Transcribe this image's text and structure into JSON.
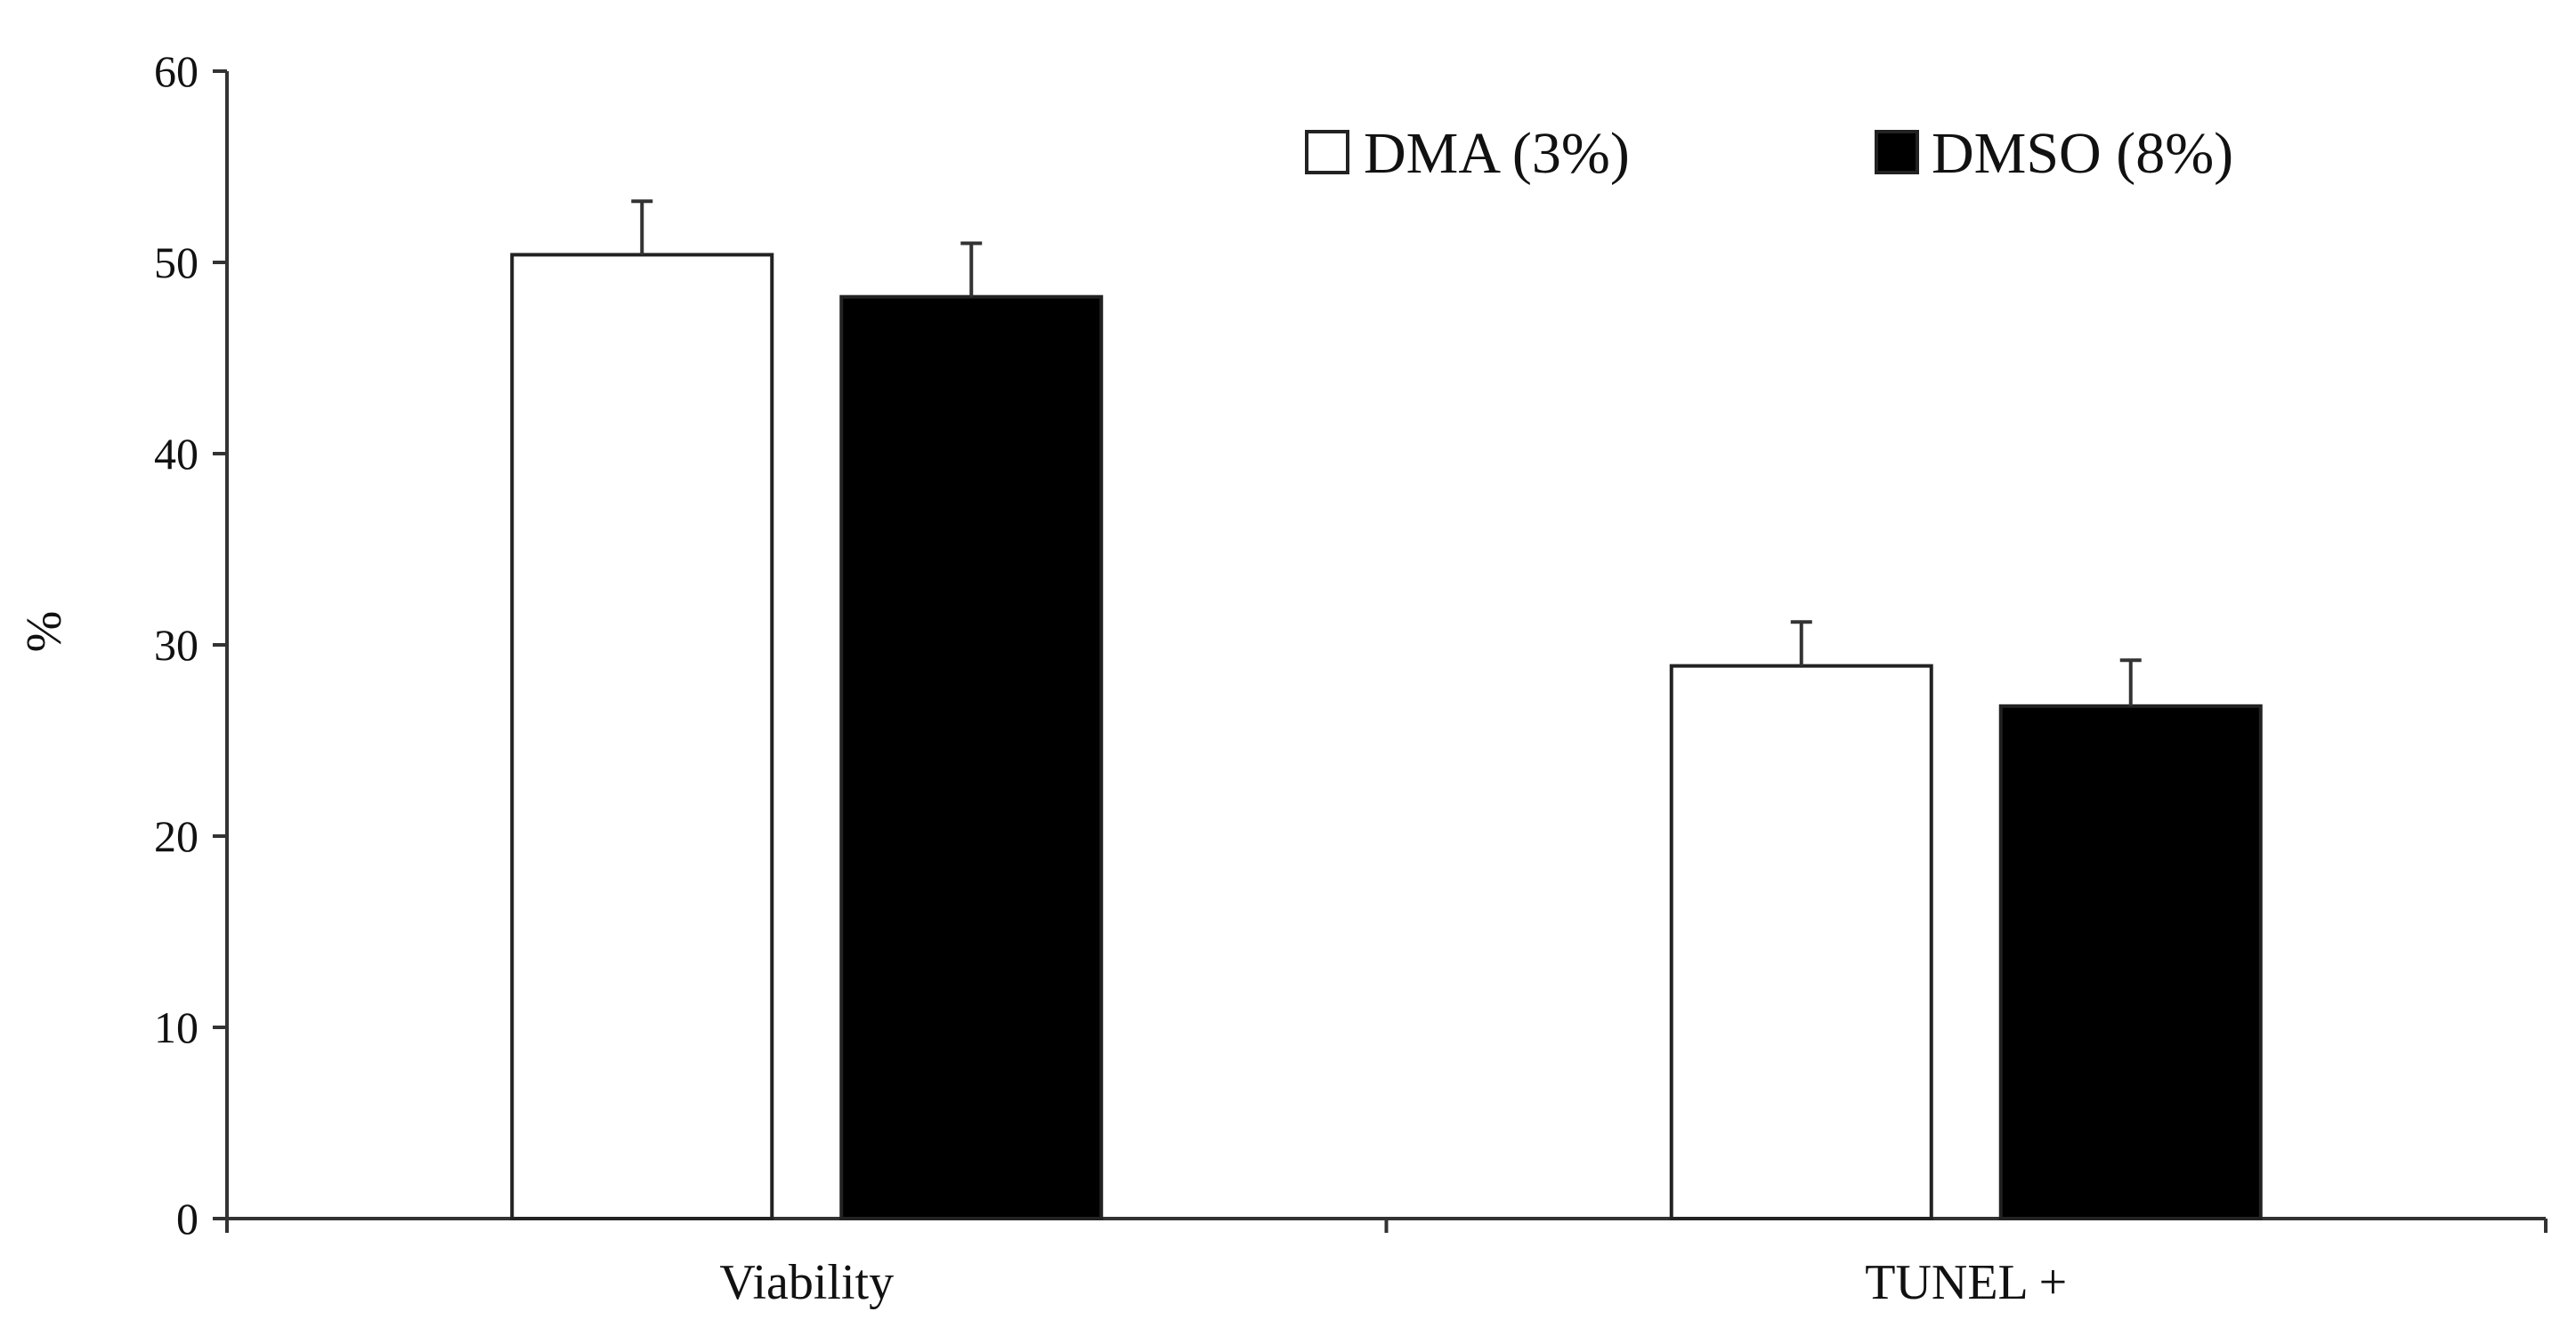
{
  "chart_data": {
    "type": "bar",
    "title": "",
    "xlabel": "",
    "ylabel": "%",
    "ylim": [
      0,
      60
    ],
    "yticks": [
      0,
      10,
      20,
      30,
      40,
      50,
      60
    ],
    "grid": false,
    "legend_position": "top-right",
    "categories": [
      "Viability",
      "TUNEL +"
    ],
    "series": [
      {
        "name": "DMA (3%)",
        "color": "#ffffff",
        "values": [
          50.4,
          28.9
        ],
        "errors": [
          2.8,
          2.3
        ]
      },
      {
        "name": "DMSO (8%)",
        "color": "#000000",
        "values": [
          48.2,
          26.8
        ],
        "errors": [
          2.8,
          2.4
        ]
      }
    ]
  }
}
